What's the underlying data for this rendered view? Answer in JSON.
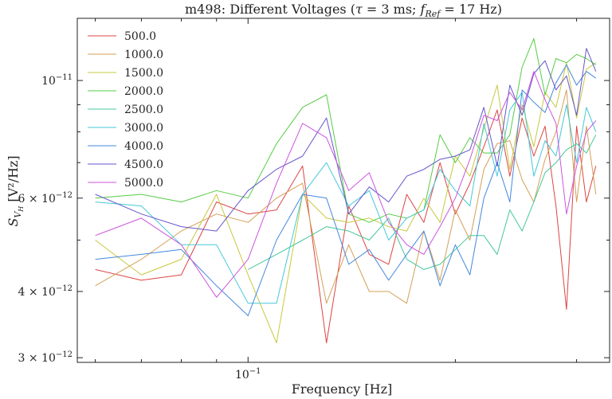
{
  "chart_data": {
    "type": "line",
    "title": "m498: Different Voltages (τ = 3 ms; f_Ref = 17 Hz)",
    "title_parts": {
      "prefix": "m498: Different Voltages (",
      "tau": "τ",
      "tau_value": " = 3 ms; ",
      "f": "f",
      "f_sub": "Ref",
      "f_value": " = 17 Hz)"
    },
    "xlabel": "Frequency [Hz]",
    "ylabel": "S_{V_H} [V²/Hz]",
    "ylabel_parts": {
      "s": "S",
      "v": "V",
      "h": "H",
      "units": " [V²/Hz]"
    },
    "x_scale": "log",
    "y_scale": "log",
    "xlim": [
      0.0565,
      0.335
    ],
    "ylim": [
      2.94e-12,
      1.31e-11
    ],
    "x_ticks": [
      {
        "value": 0.1,
        "base": "10",
        "exp": "−1"
      }
    ],
    "y_ticks": [
      {
        "value": 3e-12,
        "coef": "3 × 10",
        "exp": "−12"
      },
      {
        "value": 4e-12,
        "coef": "4 × 10",
        "exp": "−12"
      },
      {
        "value": 6e-12,
        "coef": "6 × 10",
        "exp": "−12"
      },
      {
        "value": 1e-11,
        "coef": "10",
        "exp": "−11"
      }
    ],
    "grid": false,
    "legend_position": "top-left",
    "x": [
      0.06,
      0.07,
      0.08,
      0.09,
      0.1,
      0.11,
      0.12,
      0.13,
      0.14,
      0.15,
      0.16,
      0.17,
      0.18,
      0.19,
      0.2,
      0.21,
      0.22,
      0.23,
      0.24,
      0.25,
      0.26,
      0.27,
      0.28,
      0.29,
      0.3,
      0.31,
      0.32
    ],
    "series": [
      {
        "name": "500.0",
        "color": "#dd4444",
        "values": [
          4.4e-12,
          4.2e-12,
          4.3e-12,
          5.9e-12,
          5.6e-12,
          5.7e-12,
          6.9e-12,
          3.2e-12,
          5.8e-12,
          4.7e-12,
          4.5e-12,
          6.1e-12,
          5.4e-12,
          7e-12,
          5.6e-12,
          6.4e-12,
          7.5e-12,
          8.8e-12,
          6.6e-12,
          8.5e-12,
          7.2e-12,
          8.2e-12,
          5.8e-12,
          3.7e-12,
          8.2e-12,
          5.9e-12,
          6.9e-12
        ]
      },
      {
        "name": "1000.0",
        "color": "#d4a056",
        "values": [
          4.1e-12,
          4.6e-12,
          5.2e-12,
          5.6e-12,
          5.4e-12,
          6e-12,
          6.4e-12,
          3.8e-12,
          4.9e-12,
          4e-12,
          4e-12,
          3.8e-12,
          5.2e-12,
          4.2e-12,
          5.7e-12,
          5e-12,
          6.8e-12,
          7.6e-12,
          7.7e-12,
          6.5e-12,
          5.9e-12,
          7.1e-12,
          8e-12,
          9.6e-12,
          5.9e-12,
          8.2e-12,
          6.1e-12
        ]
      },
      {
        "name": "1500.0",
        "color": "#c8c840",
        "values": [
          5e-12,
          4.3e-12,
          4.6e-12,
          6.1e-12,
          4.3e-12,
          3.2e-12,
          6.1e-12,
          5.5e-12,
          5.4e-12,
          5.5e-12,
          5.3e-12,
          5.2e-12,
          6e-12,
          5.4e-12,
          7.2e-12,
          6.6e-12,
          8.1e-12,
          9.8e-12,
          6.8e-12,
          9e-12,
          7.5e-12,
          9.5e-12,
          8.9e-12,
          1.08e-11,
          8.5e-12,
          1.05e-11,
          1.08e-11
        ]
      },
      {
        "name": "2000.0",
        "color": "#55cc44",
        "values": [
          6e-12,
          6.1e-12,
          5.9e-12,
          6.2e-12,
          6e-12,
          7.6e-12,
          8.9e-12,
          9.4e-12,
          5.6e-12,
          5.4e-12,
          5.6e-12,
          5.5e-12,
          5.7e-12,
          7.9e-12,
          7e-12,
          7.8e-12,
          7.3e-12,
          7.3e-12,
          7.9e-12,
          1.06e-11,
          1.2e-11,
          9.4e-12,
          1.1e-11,
          1.08e-11,
          1.12e-11,
          1.1e-11,
          1.07e-11
        ]
      },
      {
        "name": "2500.0",
        "color": "#44c898",
        "values": [
          null,
          null,
          null,
          null,
          4.4e-12,
          4.7e-12,
          5e-12,
          5.3e-12,
          5.2e-12,
          5e-12,
          5.5e-12,
          4.6e-12,
          4.4e-12,
          4.5e-12,
          4.8e-12,
          5.1e-12,
          5.1e-12,
          4.7e-12,
          5.7e-12,
          5.2e-12,
          5.9e-12,
          6.7e-12,
          7e-12,
          7.4e-12,
          7.6e-12,
          7.3e-12,
          7.9e-12
        ]
      },
      {
        "name": "3000.0",
        "color": "#44c8d8",
        "values": [
          5.9e-12,
          5.8e-12,
          4.9e-12,
          4.9e-12,
          3.8e-12,
          3.8e-12,
          6.1e-12,
          7e-12,
          5.8e-12,
          6.2e-12,
          5e-12,
          5.5e-12,
          5.7e-12,
          6.8e-12,
          6.2e-12,
          5.8e-12,
          8.3e-12,
          6.6e-12,
          8.8e-12,
          9.5e-12,
          6.6e-12,
          7.7e-12,
          7.2e-12,
          9e-12,
          7e-12,
          8.9e-12,
          8e-12
        ]
      },
      {
        "name": "4000.0",
        "color": "#4488dd",
        "values": [
          4.6e-12,
          4.7e-12,
          4.8e-12,
          4.1e-12,
          3.6e-12,
          5e-12,
          6.1e-12,
          6e-12,
          4.5e-12,
          4.8e-12,
          4.2e-12,
          4.7e-12,
          5.2e-12,
          4.1e-12,
          4.9e-12,
          4.3e-12,
          6e-12,
          7e-12,
          5.9e-12,
          9.6e-12,
          9.1e-12,
          8.7e-12,
          9.9e-12,
          1.07e-11,
          9.8e-12,
          1.04e-11,
          1.01e-11
        ]
      },
      {
        "name": "4500.0",
        "color": "#6655cc",
        "values": [
          6.1e-12,
          5.6e-12,
          5.3e-12,
          5.2e-12,
          6.2e-12,
          6.8e-12,
          7.2e-12,
          8.5e-12,
          5.6e-12,
          6.3e-12,
          5.9e-12,
          6.6e-12,
          6.8e-12,
          7.1e-12,
          7.2e-12,
          7.4e-12,
          8.9e-12,
          6.9e-12,
          9.8e-12,
          8.6e-12,
          1.03e-11,
          1.09e-11,
          9.6e-12,
          1.02e-11,
          8.6e-12,
          1.15e-11,
          1.04e-11
        ]
      },
      {
        "name": "5000.0",
        "color": "#cc55dd",
        "values": [
          5.1e-12,
          5.5e-12,
          4.9e-12,
          3.9e-12,
          4.6e-12,
          6.4e-12,
          8.3e-12,
          7.8e-12,
          6.2e-12,
          6.7e-12,
          5.4e-12,
          4.9e-12,
          4.7e-12,
          5.3e-12,
          6e-12,
          7.1e-12,
          8.6e-12,
          8.4e-12,
          9.5e-12,
          8.8e-12,
          1.04e-11,
          9.2e-12,
          8.3e-12,
          5.6e-12,
          6.9e-12,
          8e-12,
          8.4e-12
        ]
      }
    ]
  }
}
